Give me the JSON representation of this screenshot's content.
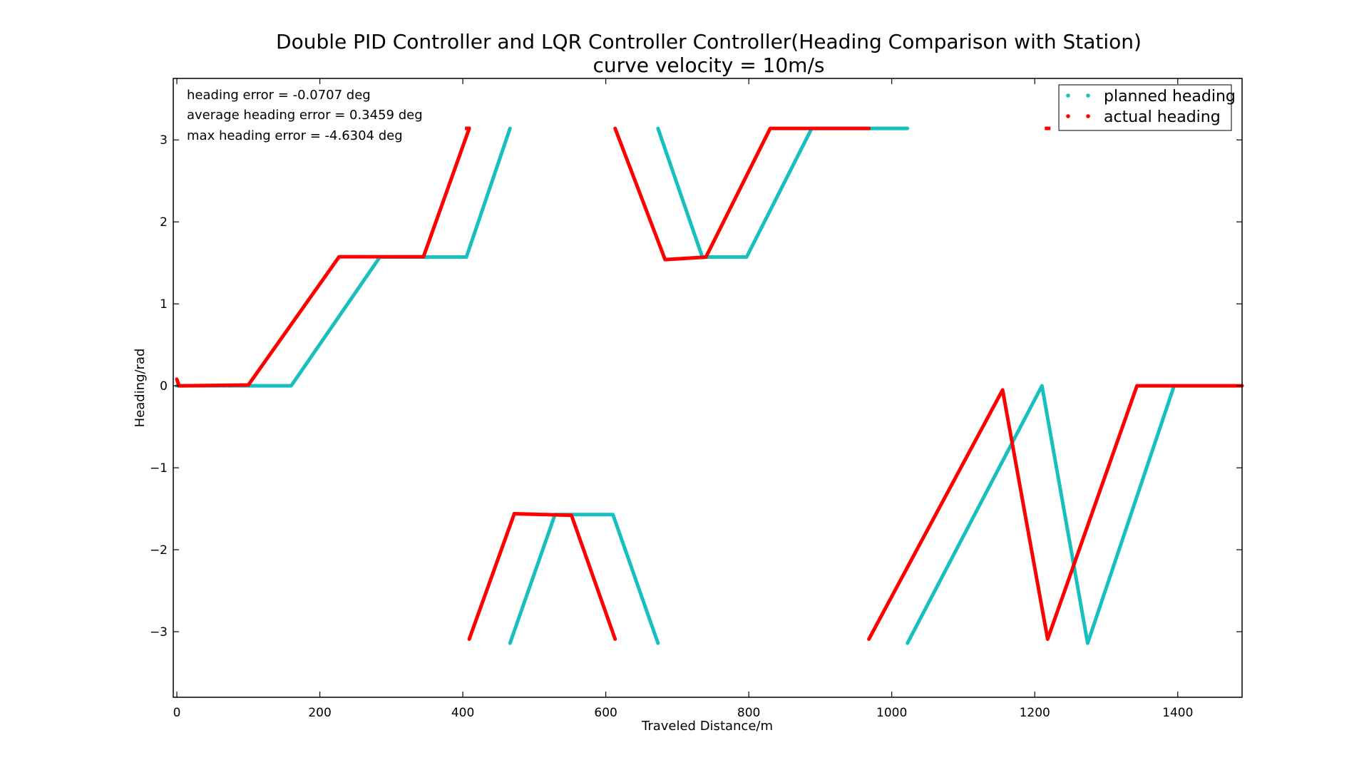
{
  "chart_data": {
    "type": "line",
    "title": "Double PID Controller and LQR Controller Controller(Heading Comparison with Station)",
    "subtitle": "curve velocity = 10m/s",
    "xlabel": "Traveled Distance/m",
    "ylabel": "Heading/rad",
    "xlim": [
      -5,
      1490
    ],
    "ylim": [
      -3.8,
      3.75
    ],
    "xticks": [
      0,
      200,
      400,
      600,
      800,
      1000,
      1200,
      1400
    ],
    "yticks": [
      -3,
      -2,
      -1,
      0,
      1,
      2,
      3
    ],
    "grid": false,
    "legend_position": "top-right",
    "annotations": [
      "heading error = -0.0707 deg",
      "average heading error = 0.3459 deg",
      "max heading error = -4.6304 deg"
    ],
    "series": [
      {
        "name": "planned heading",
        "color": "#17bfbf",
        "segments": [
          [
            [
              0,
              0
            ],
            [
              160,
              0
            ],
            [
              284,
              1.571
            ],
            [
              405,
              1.571
            ],
            [
              466,
              3.14
            ],
            [
              466,
              3.14
            ]
          ],
          [
            [
              466,
              -3.14
            ],
            [
              529,
              -1.571
            ],
            [
              610,
              -1.571
            ],
            [
              673,
              -3.14
            ]
          ],
          [
            [
              673,
              3.14
            ],
            [
              735,
              1.571
            ],
            [
              797,
              1.571
            ],
            [
              888,
              3.14
            ],
            [
              1022,
              3.14
            ]
          ],
          [
            [
              1022,
              -3.14
            ],
            [
              1210,
              0
            ],
            [
              1274,
              -3.14
            ],
            [
              1395,
              0
            ]
          ]
        ]
      },
      {
        "name": "actual heading",
        "color": "#ff0000",
        "segments": [
          [
            [
              0,
              0.08
            ],
            [
              3,
              0
            ],
            [
              100,
              0.01
            ],
            [
              227,
              1.575
            ],
            [
              345,
              1.575
            ],
            [
              409,
              3.14
            ]
          ],
          [
            [
              409,
              -3.09
            ],
            [
              472,
              -1.56
            ],
            [
              552,
              -1.58
            ],
            [
              613,
              -3.09
            ]
          ],
          [
            [
              613,
              3.14
            ],
            [
              683,
              1.54
            ],
            [
              740,
              1.57
            ],
            [
              830,
              3.14
            ],
            [
              968,
              3.14
            ]
          ],
          [
            [
              968,
              -3.09
            ],
            [
              1155,
              -0.05
            ],
            [
              1218,
              -3.09
            ],
            [
              1343,
              0
            ],
            [
              1490,
              0
            ]
          ]
        ],
        "isolated_points": [
          [
            407,
            3.14
          ],
          [
            1218,
            3.14
          ]
        ]
      }
    ]
  }
}
